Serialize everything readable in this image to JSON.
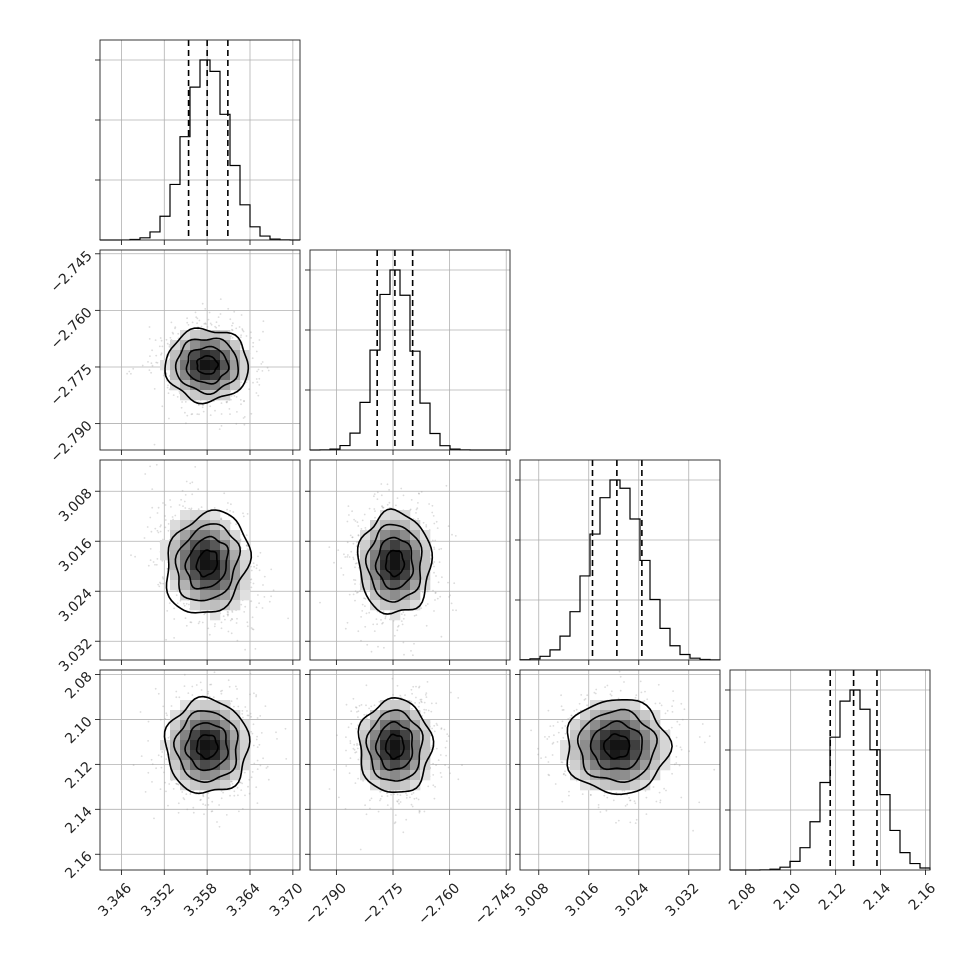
{
  "chart_data": {
    "type": "corner",
    "title": "",
    "parameters": [
      {
        "index": 0,
        "mean": 3.358,
        "sigma": 0.0029,
        "range": [
          3.343,
          3.371
        ],
        "ticks": [
          "3.346",
          "3.352",
          "3.358",
          "3.364",
          "3.370"
        ],
        "tick_values": [
          3.346,
          3.352,
          3.358,
          3.364,
          3.37
        ],
        "quantiles": [
          3.3554,
          3.358,
          3.3609
        ]
      },
      {
        "index": 1,
        "mean": -2.7745,
        "sigma": 0.0048,
        "range": [
          -2.797,
          -2.744
        ],
        "ticks": [
          "−2.745",
          "−2.760",
          "−2.775",
          "−2.790"
        ],
        "tick_values": [
          -2.745,
          -2.76,
          -2.775,
          -2.79
        ],
        "quantiles": [
          -2.7792,
          -2.7745,
          -2.7698
        ]
      },
      {
        "index": 2,
        "mean": 3.0205,
        "sigma": 0.0041,
        "range": [
          3.005,
          3.037
        ],
        "ticks": [
          "3.008",
          "3.016",
          "3.024",
          "3.032"
        ],
        "tick_values": [
          3.008,
          3.016,
          3.024,
          3.032
        ],
        "quantiles": [
          3.0166,
          3.0205,
          3.0245
        ]
      },
      {
        "index": 3,
        "mean": 2.128,
        "sigma": 0.0105,
        "range": [
          2.073,
          2.162
        ],
        "ticks": [
          "2.08",
          "2.10",
          "2.12",
          "2.14",
          "2.16"
        ],
        "tick_values": [
          2.08,
          2.1,
          2.12,
          2.14,
          2.16
        ],
        "quantiles": [
          2.1176,
          2.128,
          2.1384
        ]
      }
    ],
    "x_axis_ticks": [
      [
        "3.346",
        "3.352",
        "3.358",
        "3.364",
        "3.370"
      ],
      [
        "−2.790",
        "−2.775",
        "−2.760",
        "−2.745"
      ],
      [
        "3.008",
        "3.016",
        "3.024",
        "3.032"
      ],
      [
        "2.08",
        "2.10",
        "2.12",
        "2.14",
        "2.16"
      ]
    ],
    "y_axis_ticks": [
      [
        "−2.745",
        "−2.760",
        "−2.775",
        "−2.790"
      ],
      [
        "3.032",
        "3.024",
        "3.016",
        "3.008"
      ],
      [
        "2.16",
        "2.14",
        "2.12",
        "2.10",
        "2.08"
      ]
    ],
    "histogram_style": "step",
    "quantile_lines": "dashed",
    "contour_levels": 4,
    "grid": true,
    "colors": {
      "line": "#000000",
      "grid": "#b0b0b0",
      "scatter": "#9a9a9a",
      "frame": "#222222"
    }
  }
}
